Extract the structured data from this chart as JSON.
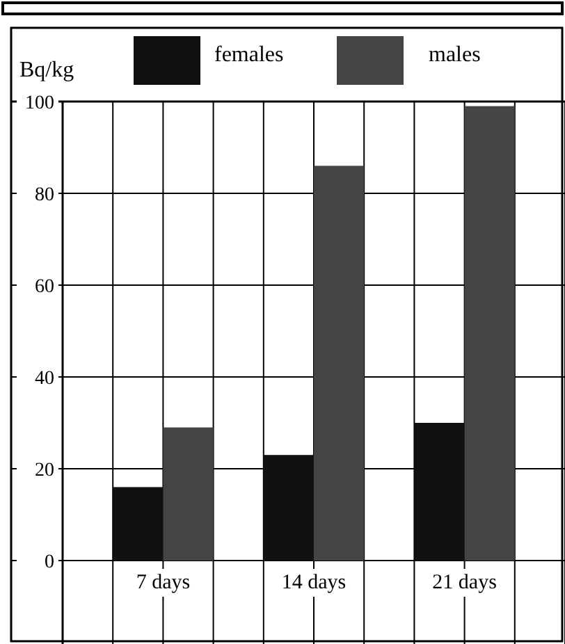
{
  "chart_data": {
    "type": "bar",
    "ylabel": "Bq/kg",
    "categories": [
      "7 days",
      "14 days",
      "21 days"
    ],
    "series": [
      {
        "name": "females",
        "color": "#111111",
        "values": [
          16,
          23,
          30
        ]
      },
      {
        "name": "males",
        "color": "#444444",
        "values": [
          29,
          86,
          99
        ]
      }
    ],
    "ylim": [
      0,
      100
    ],
    "yticks": [
      0,
      20,
      40,
      60,
      80,
      100
    ],
    "grid": true,
    "legend": "top"
  }
}
